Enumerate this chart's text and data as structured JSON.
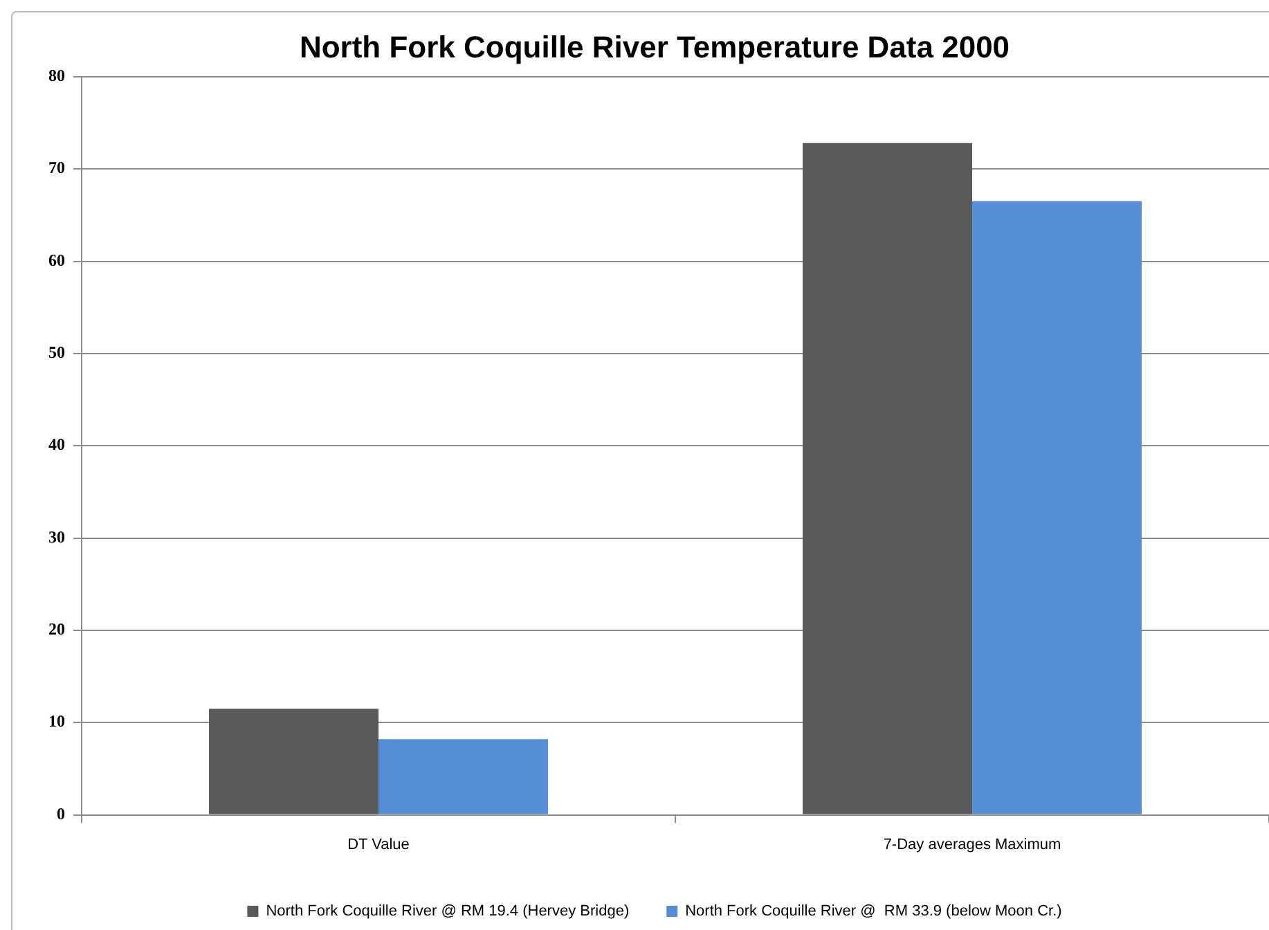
{
  "chart_data": {
    "type": "bar",
    "title": "North Fork Coquille River Temperature Data 2000",
    "categories": [
      "DT Value",
      "7-Day averages Maximum"
    ],
    "series": [
      {
        "name": "North Fork Coquille River @ RM 19.4 (Hervey Bridge)",
        "color": "#595959",
        "values": [
          11.5,
          72.8
        ]
      },
      {
        "name": "North Fork Coquille River @  RM 33.9 (below Moon Cr.)",
        "color": "#558ed5",
        "values": [
          8.2,
          66.5
        ]
      }
    ],
    "ylim": [
      0,
      80
    ],
    "yticks": [
      0,
      10,
      20,
      30,
      40,
      50,
      60,
      70,
      80
    ],
    "grid": "y",
    "legend": "bottom"
  }
}
